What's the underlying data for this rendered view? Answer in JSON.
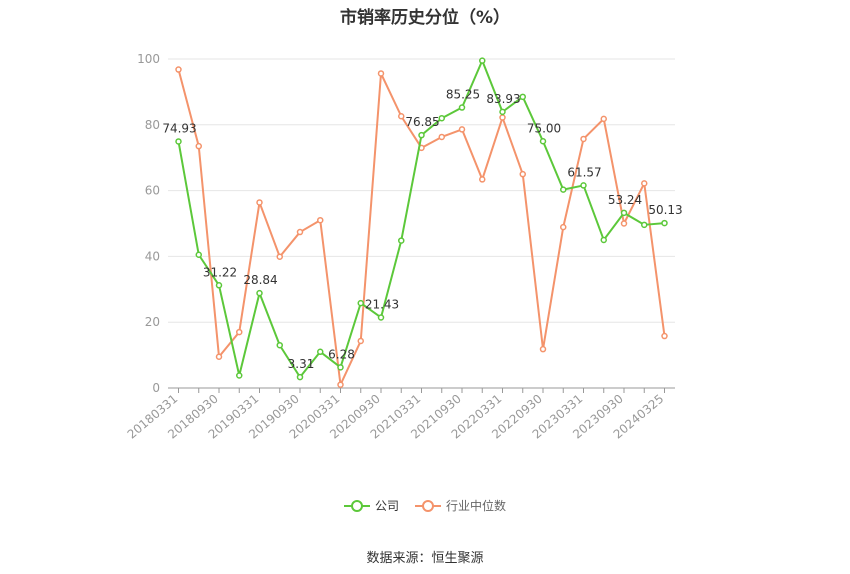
{
  "chart_data": {
    "type": "line",
    "title": "市销率历史分位（%）",
    "xlabel": "",
    "ylabel": "",
    "ylim": [
      0,
      100
    ],
    "yticks": [
      0,
      20,
      40,
      60,
      80,
      100
    ],
    "grid": true,
    "legend_position": "bottom",
    "x": [
      "20180331",
      "20180630",
      "20180930",
      "20181231",
      "20190331",
      "20190630",
      "20190930",
      "20191231",
      "20200331",
      "20200630",
      "20200930",
      "20201231",
      "20210331",
      "20210630",
      "20210930",
      "20211231",
      "20220331",
      "20220630",
      "20220930",
      "20221231",
      "20230331",
      "20230630",
      "20230930",
      "20231231",
      "20240325"
    ],
    "xtick_labels": [
      "20180331",
      "20180930",
      "20190331",
      "20190930",
      "20200331",
      "20200930",
      "20210331",
      "20210930",
      "20220331",
      "20220930",
      "20230331",
      "20230930",
      "20240325"
    ],
    "series": [
      {
        "name": "公司",
        "color": "#5cc83a",
        "values": [
          74.93,
          40.5,
          31.22,
          3.8,
          28.84,
          13.0,
          3.31,
          11.0,
          6.28,
          25.8,
          21.43,
          44.8,
          76.85,
          82.0,
          85.25,
          99.5,
          83.93,
          88.5,
          75.0,
          60.3,
          61.57,
          45.0,
          53.24,
          49.6,
          50.13
        ],
        "data_labels": [
          {
            "index": 0,
            "text": "74.93"
          },
          {
            "index": 2,
            "text": "31.22"
          },
          {
            "index": 4,
            "text": "28.84"
          },
          {
            "index": 6,
            "text": "3.31"
          },
          {
            "index": 8,
            "text": "6.28"
          },
          {
            "index": 10,
            "text": "21.43"
          },
          {
            "index": 12,
            "text": "76.85"
          },
          {
            "index": 14,
            "text": "85.25"
          },
          {
            "index": 16,
            "text": "83.93"
          },
          {
            "index": 18,
            "text": "75.00"
          },
          {
            "index": 20,
            "text": "61.57"
          },
          {
            "index": 22,
            "text": "53.24"
          },
          {
            "index": 24,
            "text": "50.13"
          }
        ]
      },
      {
        "name": "行业中位数",
        "color": "#f4936b",
        "values": [
          96.8,
          73.5,
          9.5,
          17.0,
          56.4,
          39.9,
          47.4,
          51.0,
          1.0,
          14.3,
          95.6,
          82.6,
          73.0,
          76.3,
          78.6,
          63.4,
          82.2,
          65.0,
          11.8,
          48.9,
          75.7,
          81.8,
          50.0,
          62.2,
          15.8
        ]
      }
    ]
  },
  "source": "数据来源：恒生聚源"
}
